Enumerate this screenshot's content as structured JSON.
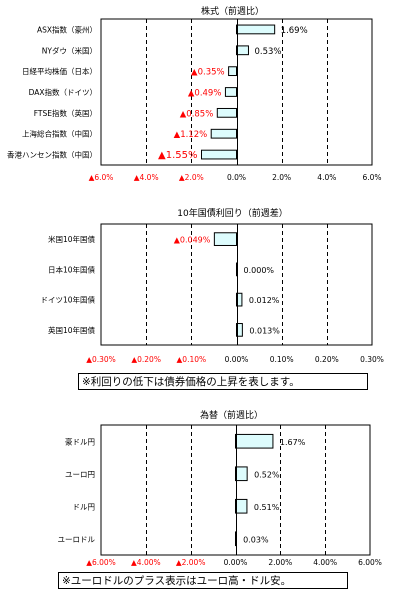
{
  "colors": {
    "bar_fill": "#ddfcfd",
    "bar_stroke": "#000000",
    "negative_text": "#ff0000",
    "positive_text": "#000000",
    "grid": "#000000"
  },
  "chart_data": [
    {
      "type": "bar",
      "orientation": "horizontal",
      "title": "株式（前週比）",
      "categories": [
        "ASX指数（豪州）",
        "NYダウ（米国）",
        "日経平均株価（日本）",
        "DAX指数（ドイツ）",
        "FTSE指数（英国）",
        "上海総合指数（中国）",
        "香港ハンセン指数（中国）"
      ],
      "values": [
        1.69,
        0.53,
        -0.35,
        -0.49,
        -0.85,
        -1.12,
        -1.55
      ],
      "value_labels": [
        "1.69%",
        "0.53%",
        "▲0.35%",
        "▲0.49%",
        "▲0.85%",
        "▲1.12%",
        "▲1.55%"
      ],
      "xlim": [
        -6,
        6
      ],
      "ticks": [
        -6,
        -4,
        -2,
        0,
        2,
        4,
        6
      ],
      "tick_labels": [
        "▲6.0%",
        "▲4.0%",
        "▲2.0%",
        "0.0%",
        "2.0%",
        "4.0%",
        "6.0%"
      ],
      "grid": true,
      "grid_style": "dashed"
    },
    {
      "type": "bar",
      "orientation": "horizontal",
      "title": "10年国債利回り（前週差）",
      "categories": [
        "米国10年国債",
        "日本10年国債",
        "ドイツ10年国債",
        "英国10年国債"
      ],
      "values": [
        -0.049,
        0.0,
        0.012,
        0.013
      ],
      "value_labels": [
        "▲0.049%",
        "0.000%",
        "0.012%",
        "0.013%"
      ],
      "xlim": [
        -0.3,
        0.3
      ],
      "ticks": [
        -0.3,
        -0.2,
        -0.1,
        0,
        0.1,
        0.2,
        0.3
      ],
      "tick_labels": [
        "▲0.30%",
        "▲0.20%",
        "▲0.10%",
        "0.00%",
        "0.10%",
        "0.20%",
        "0.30%"
      ],
      "grid": true,
      "grid_style": "dashed",
      "note": "※利回りの低下は債券価格の上昇を表します。"
    },
    {
      "type": "bar",
      "orientation": "horizontal",
      "title": "為替（前週比）",
      "categories": [
        "豪ドル円",
        "ユーロ円",
        "ドル円",
        "ユーロドル"
      ],
      "values": [
        1.67,
        0.52,
        0.51,
        0.03
      ],
      "value_labels": [
        "1.67%",
        "0.52%",
        "0.51%",
        "0.03%"
      ],
      "xlim": [
        -6,
        6
      ],
      "ticks": [
        -6,
        -4,
        -2,
        0,
        2,
        4,
        6
      ],
      "tick_labels": [
        "▲6.00%",
        "▲4.00%",
        "▲2.00%",
        "0.00%",
        "2.00%",
        "4.00%",
        "6.00%"
      ],
      "grid": true,
      "grid_style": "dashed",
      "note": "※ユーロドルのプラス表示はユーロ高・ドル安。"
    }
  ]
}
